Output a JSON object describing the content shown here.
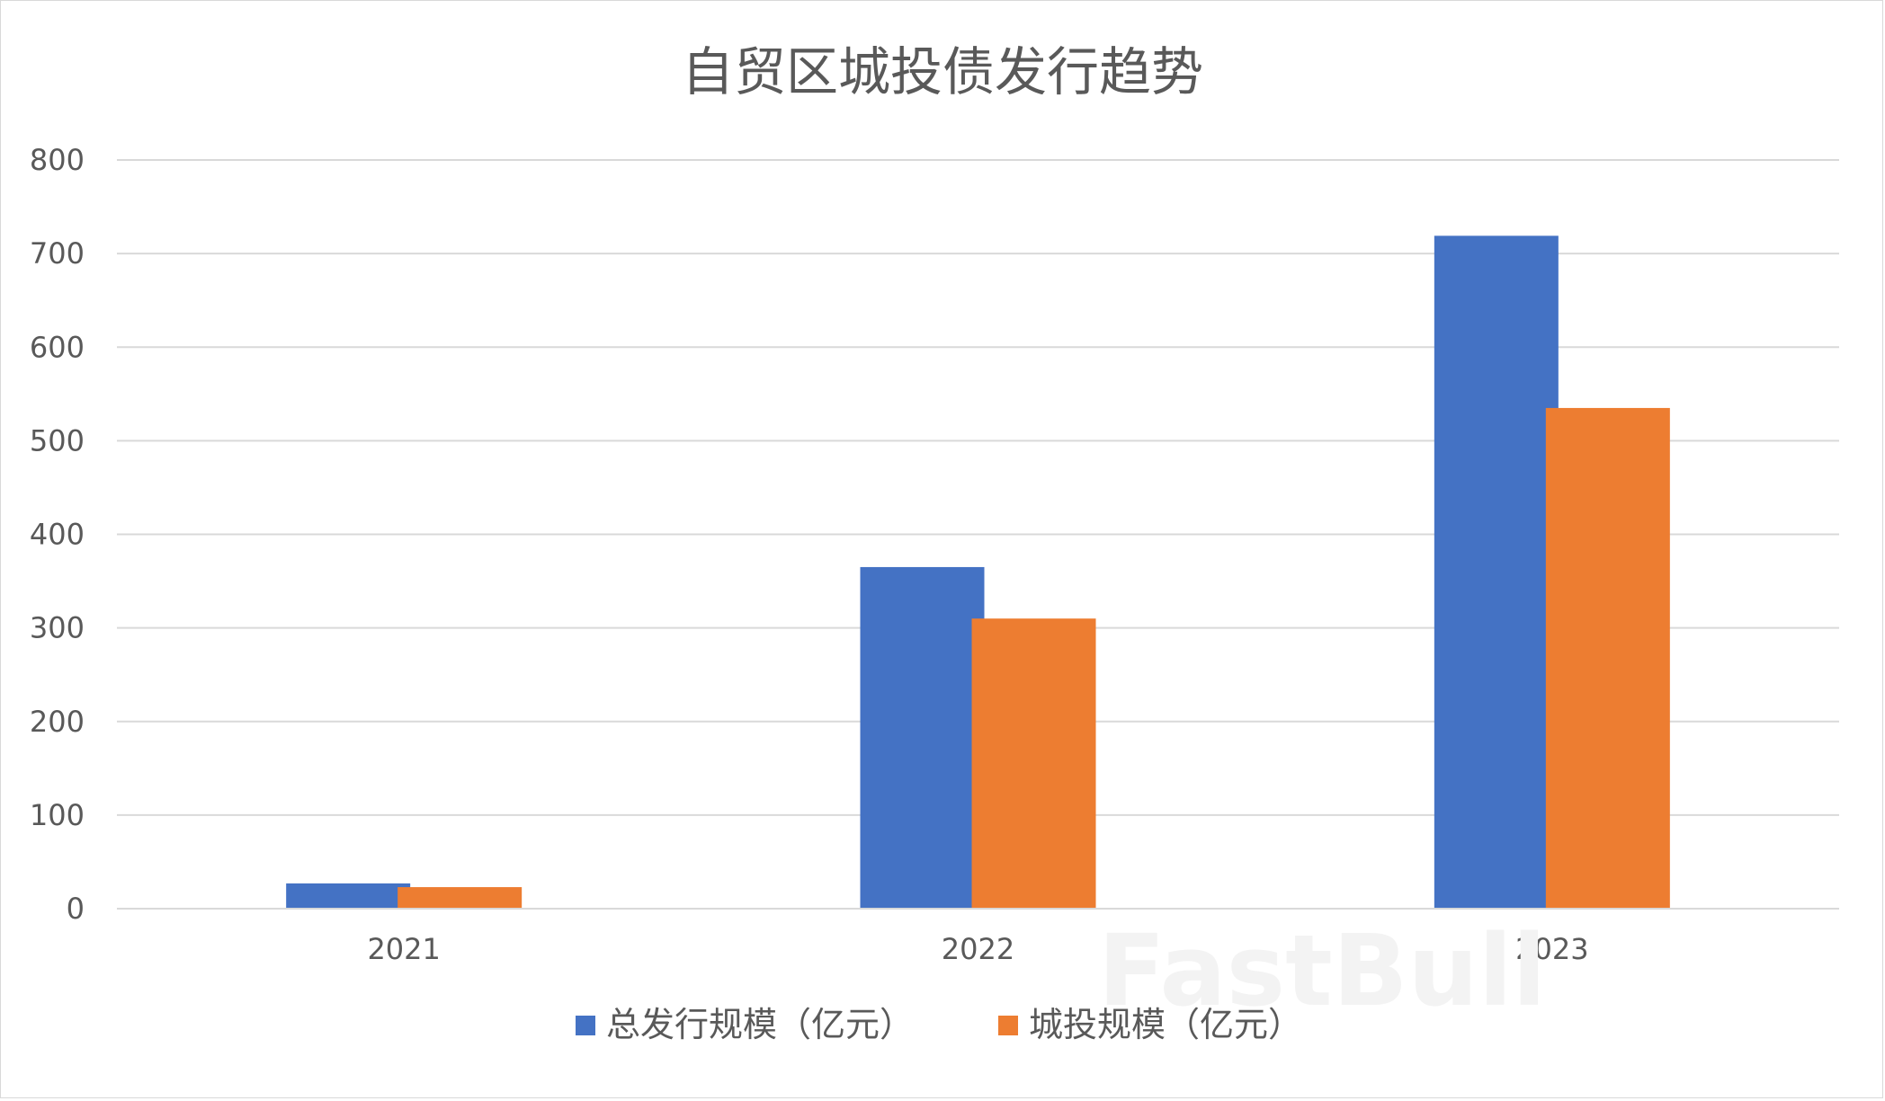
{
  "chart_data": {
    "type": "bar",
    "title": "自贸区城投债发行趋势",
    "xlabel": "",
    "ylabel": "",
    "categories": [
      "2021",
      "2022",
      "2023"
    ],
    "series": [
      {
        "name": "总发行规模（亿元）",
        "color": "#4472C4",
        "values": [
          27,
          365,
          719
        ]
      },
      {
        "name": "城投规模（亿元）",
        "color": "#ED7D31",
        "values": [
          23,
          310,
          535
        ]
      }
    ],
    "ylim": [
      0,
      800
    ],
    "yticks": [
      0,
      100,
      200,
      300,
      400,
      500,
      600,
      700,
      800
    ],
    "grid": true,
    "legend_position": "bottom"
  },
  "watermark": "FastBull"
}
